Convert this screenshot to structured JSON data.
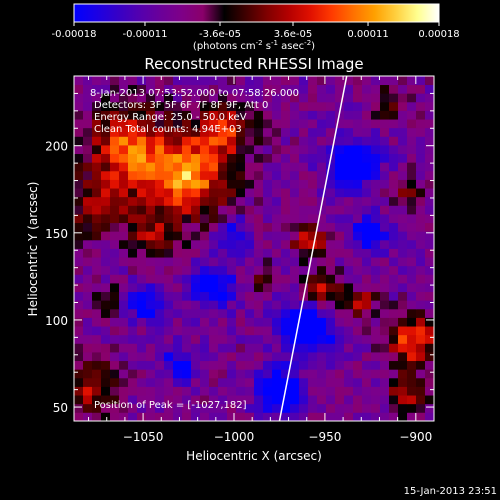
{
  "colorbar": {
    "tick_labels": [
      "-0.00018",
      "-0.00011",
      "-3.6e-05",
      "3.6e-05",
      "0.00011",
      "0.00018"
    ],
    "units_prefix": "(photons cm",
    "units_exp1": "-2",
    "units_mid": " s",
    "units_exp2": "-1",
    "units_mid2": " asec",
    "units_exp3": "-2",
    "units_suffix": ")",
    "range": [
      -0.00018,
      0.00018
    ],
    "colormap": [
      "#0000ff",
      "#1a00e6",
      "#3500c8",
      "#5200b0",
      "#6a009a",
      "#7e0088",
      "#8a006a",
      "#000000",
      "#400000",
      "#800000",
      "#b40000",
      "#e01000",
      "#ff3a00",
      "#ff7000",
      "#ffa000",
      "#ffd040",
      "#ffff90",
      "#ffffff"
    ]
  },
  "annotations": {
    "time_range": "8-Jan-2013 07:53:52.000 to 07:58:26.000",
    "detectors": "Detectors: 3F 5F 6F 7F 8F 9F, Att 0",
    "energy_range": "Energy Range: 25.0 - 50.0 keV",
    "clean_counts": "Clean     Total counts: 4.94E+03",
    "peak": "Position of Peak = [-1027,182]"
  },
  "footer": {
    "date": "15-Jan-2013 23:51"
  },
  "chart_data": {
    "type": "heatmap",
    "title": "Reconstructed RHESSI Image",
    "xlabel": "Heliocentric X (arcsec)",
    "ylabel": "Heliocentric Y (arcsec)",
    "xlim": [
      -1088,
      -890
    ],
    "ylim": [
      42,
      240
    ],
    "x_ticks": [
      -1050,
      -1000,
      -950,
      -900
    ],
    "x_tick_labels": [
      "−1050",
      "−1000",
      "−950",
      "−900"
    ],
    "y_ticks": [
      50,
      100,
      150,
      200
    ],
    "y_tick_labels": [
      "50",
      "100",
      "150",
      "200"
    ],
    "peak_position": [
      -1027,
      182
    ],
    "limb_line": [
      [
        -975,
        42
      ],
      [
        -938,
        240
      ]
    ],
    "limb_color": "#ffffff",
    "grid": false,
    "cells": 40,
    "hot_regions": [
      {
        "x": -1027,
        "y": 182,
        "r": 24,
        "v": 1.0
      },
      {
        "x": -1060,
        "y": 200,
        "r": 22,
        "v": 0.75
      },
      {
        "x": -1005,
        "y": 210,
        "r": 16,
        "v": 0.6
      },
      {
        "x": -1075,
        "y": 165,
        "r": 18,
        "v": 0.5
      },
      {
        "x": -1045,
        "y": 148,
        "r": 12,
        "v": 0.45
      },
      {
        "x": -1078,
        "y": 62,
        "r": 14,
        "v": 0.6
      },
      {
        "x": -1068,
        "y": 110,
        "r": 9,
        "v": 0.35
      },
      {
        "x": -958,
        "y": 145,
        "r": 9,
        "v": 0.75
      },
      {
        "x": -950,
        "y": 118,
        "r": 10,
        "v": 0.6
      },
      {
        "x": -930,
        "y": 110,
        "r": 8,
        "v": 0.55
      },
      {
        "x": -902,
        "y": 88,
        "r": 14,
        "v": 0.8
      },
      {
        "x": -905,
        "y": 58,
        "r": 10,
        "v": 0.6
      },
      {
        "x": -905,
        "y": 175,
        "r": 9,
        "v": 0.35
      },
      {
        "x": -915,
        "y": 225,
        "r": 10,
        "v": 0.4
      },
      {
        "x": -985,
        "y": 125,
        "r": 8,
        "v": 0.3
      }
    ],
    "cold_regions": [
      {
        "x": -960,
        "y": 95,
        "r": 14,
        "v": 0.9
      },
      {
        "x": -975,
        "y": 60,
        "r": 12,
        "v": 0.85
      },
      {
        "x": -935,
        "y": 190,
        "r": 14,
        "v": 0.8
      },
      {
        "x": -1012,
        "y": 120,
        "r": 12,
        "v": 0.7
      },
      {
        "x": -1050,
        "y": 110,
        "r": 10,
        "v": 0.6
      },
      {
        "x": -925,
        "y": 150,
        "r": 10,
        "v": 0.6
      },
      {
        "x": -1030,
        "y": 75,
        "r": 10,
        "v": 0.5
      },
      {
        "x": -1000,
        "y": 150,
        "r": 9,
        "v": 0.5
      }
    ]
  }
}
